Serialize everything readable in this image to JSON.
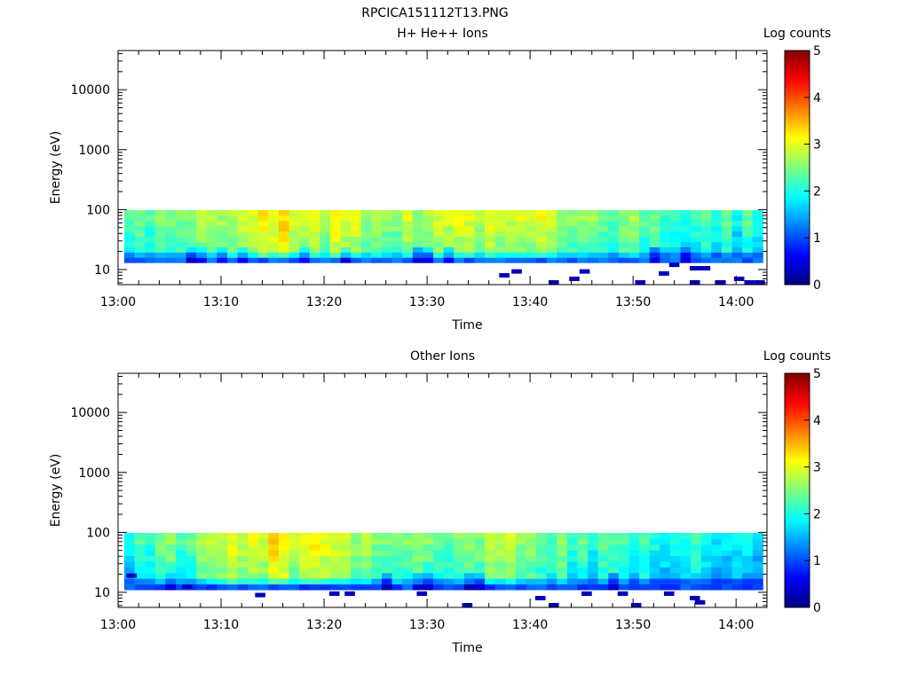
{
  "figure": {
    "title": "RPCICA151112T13.PNG"
  },
  "colors": {
    "colormap": [
      "#00007f",
      "#0000ff",
      "#007fff",
      "#00ffff",
      "#7fff7f",
      "#ffff00",
      "#ff7f00",
      "#ff0000",
      "#7f0000"
    ],
    "background": "#ffffff",
    "axis": "#000000"
  },
  "chart_data": [
    {
      "type": "heatmap",
      "title": "H+ He++ Ions",
      "xlabel": "Time",
      "ylabel": "Energy (eV)",
      "colorbar_label": "Log counts",
      "x_range": [
        "13:00",
        "14:03"
      ],
      "x_ticks": [
        "13:00",
        "13:10",
        "13:20",
        "13:30",
        "13:40",
        "13:50",
        "14:00"
      ],
      "y_scale": "log",
      "y_range": [
        5.6,
        45000
      ],
      "y_ticks": [
        "10",
        "100",
        "1000",
        "10000"
      ],
      "colorbar_range": [
        0,
        5
      ],
      "colorbar_ticks": [
        "0",
        "1",
        "2",
        "3",
        "4",
        "5"
      ],
      "band": {
        "t_start_min": 0.6,
        "t_end_min": 62.6,
        "energy_top_eV": 98,
        "energy_bottom_eV": 13,
        "main_level_by_time": [
          {
            "t": 0,
            "level": 2.0
          },
          {
            "t": 8,
            "level": 2.4
          },
          {
            "t": 10,
            "level": 2.8
          },
          {
            "t": 14,
            "level": 3.0
          },
          {
            "t": 20,
            "level": 2.8
          },
          {
            "t": 30,
            "level": 2.5
          },
          {
            "t": 38,
            "level": 2.9
          },
          {
            "t": 45,
            "level": 2.4
          },
          {
            "t": 55,
            "level": 2.1
          },
          {
            "t": 62,
            "level": 1.9
          }
        ],
        "low_energy_edge_level": 0.9
      },
      "sparse_points": [
        {
          "t": 37.0,
          "energy_eV": 8.0,
          "level": 0.3
        },
        {
          "t": 38.2,
          "energy_eV": 9.3,
          "level": 0.3
        },
        {
          "t": 41.8,
          "energy_eV": 6.1,
          "level": 0.3
        },
        {
          "t": 43.8,
          "energy_eV": 7.0,
          "level": 0.3
        },
        {
          "t": 44.8,
          "energy_eV": 9.3,
          "level": 0.3
        },
        {
          "t": 50.2,
          "energy_eV": 6.1,
          "level": 0.3
        },
        {
          "t": 52.5,
          "energy_eV": 8.6,
          "level": 0.3
        },
        {
          "t": 53.5,
          "energy_eV": 12.0,
          "level": 0.3
        },
        {
          "t": 55.5,
          "energy_eV": 10.5,
          "level": 0.3
        },
        {
          "t": 56.5,
          "energy_eV": 10.5,
          "level": 0.3
        },
        {
          "t": 55.5,
          "energy_eV": 6.1,
          "level": 0.3
        },
        {
          "t": 58.0,
          "energy_eV": 6.1,
          "level": 0.3
        },
        {
          "t": 59.8,
          "energy_eV": 7.0,
          "level": 0.3
        },
        {
          "t": 60.8,
          "energy_eV": 6.1,
          "level": 0.3
        },
        {
          "t": 61.8,
          "energy_eV": 6.1,
          "level": 0.3
        }
      ]
    },
    {
      "type": "heatmap",
      "title": "Other Ions",
      "xlabel": "Time",
      "ylabel": "Energy (eV)",
      "colorbar_label": "Log counts",
      "x_range": [
        "13:00",
        "14:03"
      ],
      "x_ticks": [
        "13:00",
        "13:10",
        "13:20",
        "13:30",
        "13:40",
        "13:50",
        "14:00"
      ],
      "y_scale": "log",
      "y_range": [
        5.6,
        45000
      ],
      "y_ticks": [
        "10",
        "100",
        "1000",
        "10000"
      ],
      "colorbar_range": [
        0,
        5
      ],
      "colorbar_ticks": [
        "0",
        "1",
        "2",
        "3",
        "4",
        "5"
      ],
      "band": {
        "t_start_min": 0.6,
        "t_end_min": 62.6,
        "energy_top_eV": 98,
        "energy_bottom_eV": 11,
        "main_level_by_time": [
          {
            "t": 0,
            "level": 1.9
          },
          {
            "t": 8,
            "level": 2.3
          },
          {
            "t": 10,
            "level": 2.8
          },
          {
            "t": 14,
            "level": 3.0
          },
          {
            "t": 20,
            "level": 2.7
          },
          {
            "t": 30,
            "level": 2.3
          },
          {
            "t": 38,
            "level": 2.6
          },
          {
            "t": 45,
            "level": 2.0
          },
          {
            "t": 55,
            "level": 1.8
          },
          {
            "t": 62,
            "level": 1.6
          }
        ],
        "low_energy_edge_level": 0.8
      },
      "sparse_points": [
        {
          "t": 0.8,
          "energy_eV": 19.0,
          "level": 0.3
        },
        {
          "t": 6.2,
          "energy_eV": 12.3,
          "level": 0.3
        },
        {
          "t": 13.3,
          "energy_eV": 9.0,
          "level": 0.3
        },
        {
          "t": 20.5,
          "energy_eV": 9.5,
          "level": 0.3
        },
        {
          "t": 22.0,
          "energy_eV": 9.5,
          "level": 0.3
        },
        {
          "t": 29.0,
          "energy_eV": 9.5,
          "level": 0.3
        },
        {
          "t": 33.4,
          "energy_eV": 6.1,
          "level": 0.3
        },
        {
          "t": 40.5,
          "energy_eV": 8.0,
          "level": 0.3
        },
        {
          "t": 41.8,
          "energy_eV": 6.1,
          "level": 0.3
        },
        {
          "t": 45.0,
          "energy_eV": 9.5,
          "level": 0.3
        },
        {
          "t": 48.5,
          "energy_eV": 9.5,
          "level": 0.3
        },
        {
          "t": 49.8,
          "energy_eV": 6.1,
          "level": 0.3
        },
        {
          "t": 53.0,
          "energy_eV": 9.5,
          "level": 0.3
        },
        {
          "t": 55.5,
          "energy_eV": 8.0,
          "level": 0.3
        },
        {
          "t": 56.0,
          "energy_eV": 6.8,
          "level": 0.3
        }
      ]
    }
  ]
}
